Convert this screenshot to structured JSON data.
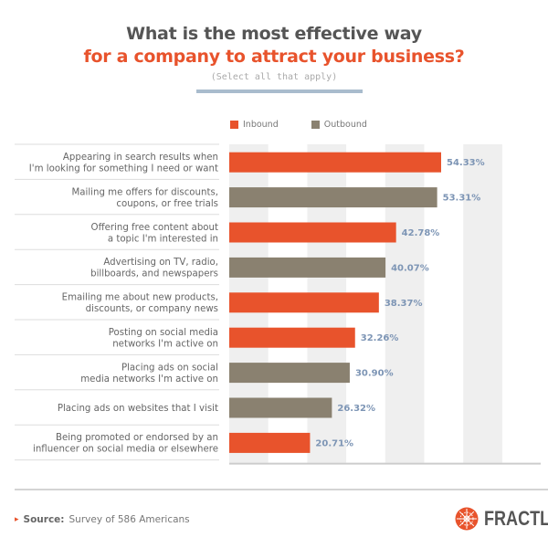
{
  "title": {
    "line1": "What is the most effective way",
    "line2": "for a company to attract your business?",
    "subtitle": "(Select all that apply)"
  },
  "colors": {
    "inbound": "#e8532c",
    "outbound": "#8a8170",
    "value_label": "#7d95b5",
    "stripe": "#efefef"
  },
  "legend": [
    {
      "name": "Inbound",
      "color": "#e8532c"
    },
    {
      "name": "Outbound",
      "color": "#8a8170"
    }
  ],
  "chart_data": {
    "type": "bar",
    "orientation": "horizontal",
    "title": "What is the most effective way for a company to attract your business?",
    "subtitle": "(Select all that apply)",
    "xlabel": "",
    "ylabel": "",
    "xlim": [
      0,
      80
    ],
    "grid": "alternating vertical bands every 10%",
    "legend_position": "top-left",
    "categories": [
      [
        "Appearing in search results when",
        "I'm looking for something I need or want"
      ],
      [
        "Mailing me offers for discounts,",
        "coupons, or free trials"
      ],
      [
        "Offering free content about",
        "a topic I'm interested in"
      ],
      [
        "Advertising on TV, radio,",
        "billboards, and newspapers"
      ],
      [
        "Emailing me about new products,",
        "discounts, or company news"
      ],
      [
        "Posting on social media",
        "networks I'm active on"
      ],
      [
        "Placing ads on social",
        "media networks I'm active on"
      ],
      [
        "Placing ads on websites that I visit"
      ],
      [
        "Being promoted or endorsed by an",
        "influencer on social media or elsewhere"
      ]
    ],
    "values": [
      54.33,
      53.31,
      42.78,
      40.07,
      38.37,
      32.26,
      30.9,
      26.32,
      20.71
    ],
    "value_labels": [
      "54.33%",
      "53.31%",
      "42.78%",
      "40.07%",
      "38.37%",
      "32.26%",
      "30.90%",
      "26.32%",
      "20.71%"
    ],
    "series_type": [
      "Inbound",
      "Outbound",
      "Inbound",
      "Outbound",
      "Inbound",
      "Inbound",
      "Outbound",
      "Outbound",
      "Inbound"
    ]
  },
  "footer": {
    "source_label": "Source:",
    "source_text": "Survey of 586 Americans",
    "brand": "FRACTL"
  }
}
